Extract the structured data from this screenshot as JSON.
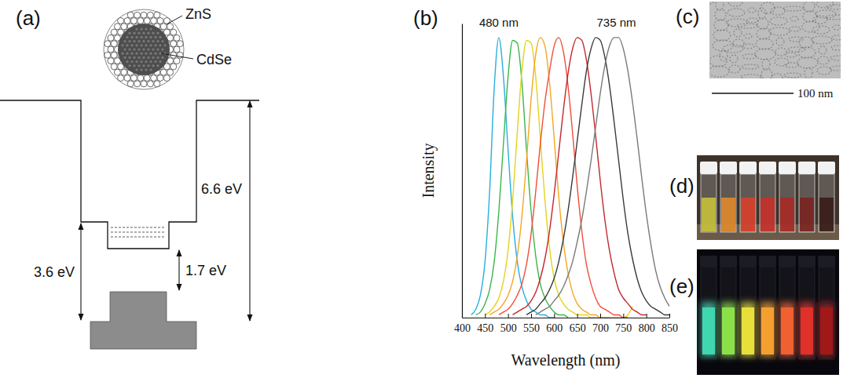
{
  "panel_labels": [
    "(a)",
    "(b)",
    "(c)",
    "(d)",
    "(e)"
  ],
  "diagram": {
    "shell": "ZnS",
    "core": "CdSe",
    "gaps": [
      "6.6 eV",
      "3.6 eV",
      "1.7 eV"
    ]
  },
  "chart_data": {
    "type": "line",
    "xlabel": "Wavelength (nm)",
    "ylabel": "Intensity",
    "xlim": [
      400,
      850
    ],
    "xticks": [
      400,
      450,
      500,
      550,
      600,
      650,
      700,
      750,
      800,
      850
    ],
    "ylim": [
      0,
      1.05
    ],
    "tick_labels": "x",
    "annotations": [
      {
        "text": "480 nm",
        "x": 480
      },
      {
        "text": "735 nm",
        "x": 735
      }
    ],
    "x": [
      400,
      410,
      420,
      430,
      440,
      450,
      460,
      470,
      480,
      490,
      500,
      510,
      520,
      530,
      540,
      550,
      560,
      570,
      580,
      590,
      600,
      610,
      620,
      630,
      640,
      650,
      660,
      670,
      680,
      690,
      700,
      710,
      720,
      730,
      740,
      750,
      760,
      770,
      780,
      790,
      800,
      810,
      820,
      830,
      840,
      850
    ],
    "series": [
      {
        "color": "#29aee0",
        "values": [
          null,
          null,
          0.01,
          0.03,
          0.08,
          0.2,
          0.45,
          0.82,
          1.0,
          0.86,
          0.6,
          0.36,
          0.2,
          0.11,
          0.06,
          0.03,
          0.02,
          0.01,
          0.01,
          0.0,
          0.0,
          null,
          null,
          null,
          null,
          null,
          null,
          null,
          null,
          null,
          null,
          null,
          null,
          null,
          null,
          null,
          null,
          null,
          null,
          null,
          null,
          null,
          null,
          null,
          null,
          null
        ]
      },
      {
        "color": "#3cb54a",
        "values": [
          null,
          null,
          null,
          0.01,
          0.02,
          0.05,
          0.1,
          0.2,
          0.38,
          0.62,
          0.86,
          0.99,
          0.98,
          0.84,
          0.6,
          0.38,
          0.22,
          0.12,
          0.07,
          0.04,
          0.02,
          0.01,
          0.01,
          0.0,
          null,
          null,
          null,
          null,
          null,
          null,
          null,
          null,
          null,
          null,
          null,
          null,
          null,
          null,
          null,
          null,
          null,
          null,
          null,
          null,
          null,
          null
        ]
      },
      {
        "color": "#e3d31c",
        "values": [
          null,
          null,
          null,
          null,
          null,
          0.01,
          0.02,
          0.04,
          0.07,
          0.13,
          0.24,
          0.42,
          0.66,
          0.88,
          0.99,
          0.98,
          0.86,
          0.64,
          0.42,
          0.25,
          0.14,
          0.08,
          0.05,
          0.03,
          0.02,
          0.01,
          0.01,
          0.01,
          0.0,
          0.0,
          0.0,
          0.0,
          0.0,
          0.0,
          0.0,
          0.0,
          0.01,
          0.04,
          null,
          null,
          null,
          null,
          null,
          null,
          null,
          null
        ]
      },
      {
        "color": "#f5a623",
        "values": [
          null,
          null,
          null,
          null,
          null,
          null,
          0.01,
          0.02,
          0.03,
          0.05,
          0.08,
          0.13,
          0.22,
          0.36,
          0.56,
          0.78,
          0.94,
          1.0,
          0.97,
          0.84,
          0.64,
          0.43,
          0.27,
          0.16,
          0.09,
          0.05,
          0.03,
          0.02,
          0.01,
          0.01,
          0.0,
          0.0,
          0.0,
          null,
          null,
          null,
          null,
          null,
          null,
          null,
          null,
          null,
          null,
          null,
          null,
          null
        ]
      },
      {
        "color": "#ef4e3a",
        "values": [
          null,
          null,
          null,
          null,
          null,
          null,
          null,
          null,
          0.01,
          0.02,
          0.03,
          0.05,
          0.08,
          0.12,
          0.19,
          0.3,
          0.45,
          0.62,
          0.77,
          0.88,
          0.97,
          1.0,
          0.95,
          0.83,
          0.66,
          0.47,
          0.31,
          0.19,
          0.12,
          0.07,
          0.04,
          0.03,
          0.02,
          0.01,
          0.01,
          0.0,
          0.0,
          null,
          null,
          null,
          null,
          null,
          null,
          null,
          null,
          null
        ]
      },
      {
        "color": "#c1272d",
        "values": [
          null,
          null,
          null,
          null,
          null,
          null,
          null,
          null,
          null,
          null,
          null,
          0.01,
          0.02,
          0.03,
          0.04,
          0.06,
          0.09,
          0.14,
          0.21,
          0.31,
          0.44,
          0.59,
          0.74,
          0.87,
          0.96,
          1.0,
          0.99,
          0.92,
          0.8,
          0.65,
          0.49,
          0.35,
          0.24,
          0.16,
          0.1,
          0.07,
          0.05,
          0.03,
          0.02,
          0.01,
          0.01,
          null,
          null,
          null,
          null,
          null
        ]
      },
      {
        "color": "#3a3a3a",
        "values": [
          null,
          null,
          null,
          null,
          null,
          null,
          null,
          null,
          null,
          null,
          null,
          null,
          null,
          null,
          0.01,
          0.02,
          0.03,
          0.05,
          0.07,
          0.1,
          0.14,
          0.2,
          0.28,
          0.38,
          0.5,
          0.63,
          0.76,
          0.88,
          0.96,
          1.0,
          0.99,
          0.93,
          0.83,
          0.7,
          0.56,
          0.42,
          0.3,
          0.21,
          0.14,
          0.09,
          0.06,
          0.04,
          0.03,
          0.02,
          0.01,
          0.01
        ]
      },
      {
        "color": "#7a7a7a",
        "values": [
          null,
          null,
          null,
          null,
          null,
          null,
          null,
          null,
          null,
          null,
          null,
          null,
          null,
          null,
          null,
          null,
          0.01,
          0.02,
          0.03,
          0.04,
          0.06,
          0.08,
          0.11,
          0.15,
          0.2,
          0.27,
          0.35,
          0.45,
          0.56,
          0.68,
          0.8,
          0.9,
          0.97,
          1.0,
          1.0,
          0.96,
          0.88,
          0.77,
          0.64,
          0.5,
          0.37,
          0.26,
          0.17,
          0.11,
          0.07,
          0.04
        ]
      }
    ]
  },
  "tem_image": {
    "scale_bar": "100 nm"
  }
}
